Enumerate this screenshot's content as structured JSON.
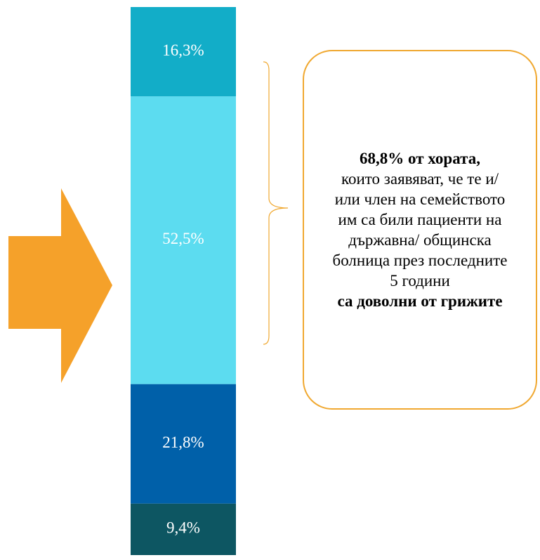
{
  "chart_data": {
    "type": "stacked_bar",
    "series": [
      {
        "color": "#0d5662",
        "values": [
          9.4
        ],
        "value_labels": [
          "9,4%"
        ]
      },
      {
        "color": "#0060a9",
        "values": [
          21.8
        ],
        "value_labels": [
          "21,8%"
        ]
      },
      {
        "color": "#5cdcf0",
        "values": [
          52.5
        ],
        "value_labels": [
          "52,5%"
        ]
      },
      {
        "color": "#12adc8",
        "values": [
          16.3
        ],
        "value_labels": [
          "16,3%"
        ]
      }
    ],
    "callout": {
      "bold_top": "68,8% от хората,",
      "body": "които заявяват, че те и/или член на семейството им са били пациенти на държавна/ общинска болница през последните 5 години",
      "bold_bottom": "са доволни от грижите"
    }
  }
}
